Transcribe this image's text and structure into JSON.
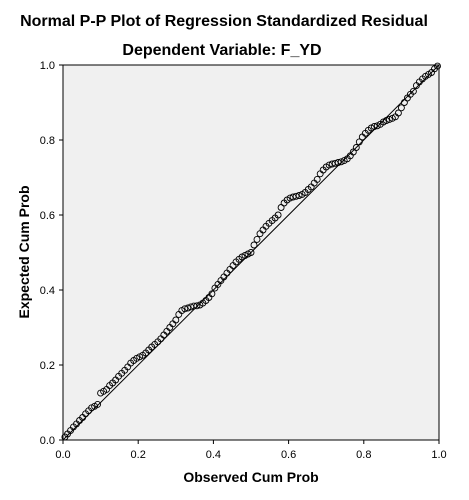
{
  "chart_data": {
    "type": "scatter",
    "title": "Normal P-P Plot of Regression Standardized Residual",
    "subtitle": "Dependent Variable: F_YD",
    "xlabel": "Observed Cum Prob",
    "ylabel": "Expected Cum Prob",
    "xlim": [
      0,
      1
    ],
    "ylim": [
      0,
      1
    ],
    "xticks": [
      "0.0",
      "0.2",
      "0.4",
      "0.6",
      "0.8",
      "1.0"
    ],
    "yticks": [
      "0.0",
      "0.2",
      "0.4",
      "0.6",
      "0.8",
      "1.0"
    ],
    "grid": false,
    "reference_line": [
      [
        0,
        0
      ],
      [
        1,
        1
      ]
    ],
    "colors": {
      "plot_background": "#f0f0f0",
      "points": "#000000",
      "line": "#000000"
    },
    "points": [
      [
        0.005,
        0.008
      ],
      [
        0.012,
        0.016
      ],
      [
        0.02,
        0.025
      ],
      [
        0.028,
        0.035
      ],
      [
        0.036,
        0.043
      ],
      [
        0.044,
        0.052
      ],
      [
        0.052,
        0.06
      ],
      [
        0.06,
        0.07
      ],
      [
        0.068,
        0.078
      ],
      [
        0.076,
        0.086
      ],
      [
        0.084,
        0.09
      ],
      [
        0.092,
        0.095
      ],
      [
        0.1,
        0.125
      ],
      [
        0.108,
        0.13
      ],
      [
        0.116,
        0.135
      ],
      [
        0.124,
        0.145
      ],
      [
        0.132,
        0.152
      ],
      [
        0.14,
        0.16
      ],
      [
        0.148,
        0.17
      ],
      [
        0.156,
        0.178
      ],
      [
        0.164,
        0.186
      ],
      [
        0.172,
        0.195
      ],
      [
        0.18,
        0.205
      ],
      [
        0.188,
        0.212
      ],
      [
        0.196,
        0.218
      ],
      [
        0.204,
        0.222
      ],
      [
        0.212,
        0.226
      ],
      [
        0.22,
        0.232
      ],
      [
        0.228,
        0.24
      ],
      [
        0.236,
        0.248
      ],
      [
        0.244,
        0.255
      ],
      [
        0.252,
        0.262
      ],
      [
        0.26,
        0.27
      ],
      [
        0.268,
        0.28
      ],
      [
        0.276,
        0.29
      ],
      [
        0.284,
        0.3
      ],
      [
        0.292,
        0.31
      ],
      [
        0.3,
        0.32
      ],
      [
        0.308,
        0.335
      ],
      [
        0.316,
        0.345
      ],
      [
        0.324,
        0.35
      ],
      [
        0.332,
        0.352
      ],
      [
        0.34,
        0.355
      ],
      [
        0.348,
        0.357
      ],
      [
        0.356,
        0.358
      ],
      [
        0.364,
        0.36
      ],
      [
        0.372,
        0.365
      ],
      [
        0.38,
        0.372
      ],
      [
        0.388,
        0.38
      ],
      [
        0.396,
        0.39
      ],
      [
        0.404,
        0.405
      ],
      [
        0.412,
        0.415
      ],
      [
        0.42,
        0.425
      ],
      [
        0.428,
        0.435
      ],
      [
        0.436,
        0.445
      ],
      [
        0.444,
        0.455
      ],
      [
        0.452,
        0.465
      ],
      [
        0.46,
        0.475
      ],
      [
        0.468,
        0.482
      ],
      [
        0.476,
        0.488
      ],
      [
        0.484,
        0.492
      ],
      [
        0.492,
        0.496
      ],
      [
        0.5,
        0.5
      ],
      [
        0.508,
        0.52
      ],
      [
        0.516,
        0.535
      ],
      [
        0.524,
        0.55
      ],
      [
        0.532,
        0.56
      ],
      [
        0.54,
        0.57
      ],
      [
        0.548,
        0.578
      ],
      [
        0.556,
        0.585
      ],
      [
        0.564,
        0.592
      ],
      [
        0.572,
        0.6
      ],
      [
        0.58,
        0.62
      ],
      [
        0.588,
        0.632
      ],
      [
        0.596,
        0.64
      ],
      [
        0.604,
        0.645
      ],
      [
        0.612,
        0.648
      ],
      [
        0.62,
        0.65
      ],
      [
        0.628,
        0.652
      ],
      [
        0.636,
        0.655
      ],
      [
        0.644,
        0.66
      ],
      [
        0.652,
        0.668
      ],
      [
        0.66,
        0.675
      ],
      [
        0.668,
        0.685
      ],
      [
        0.676,
        0.695
      ],
      [
        0.684,
        0.71
      ],
      [
        0.692,
        0.72
      ],
      [
        0.7,
        0.728
      ],
      [
        0.708,
        0.733
      ],
      [
        0.716,
        0.736
      ],
      [
        0.724,
        0.738
      ],
      [
        0.732,
        0.74
      ],
      [
        0.74,
        0.742
      ],
      [
        0.748,
        0.745
      ],
      [
        0.756,
        0.75
      ],
      [
        0.764,
        0.758
      ],
      [
        0.772,
        0.768
      ],
      [
        0.78,
        0.78
      ],
      [
        0.788,
        0.795
      ],
      [
        0.796,
        0.808
      ],
      [
        0.804,
        0.818
      ],
      [
        0.812,
        0.826
      ],
      [
        0.82,
        0.832
      ],
      [
        0.828,
        0.836
      ],
      [
        0.836,
        0.838
      ],
      [
        0.844,
        0.842
      ],
      [
        0.852,
        0.848
      ],
      [
        0.86,
        0.852
      ],
      [
        0.868,
        0.855
      ],
      [
        0.876,
        0.858
      ],
      [
        0.884,
        0.862
      ],
      [
        0.892,
        0.872
      ],
      [
        0.9,
        0.886
      ],
      [
        0.908,
        0.9
      ],
      [
        0.916,
        0.912
      ],
      [
        0.924,
        0.922
      ],
      [
        0.932,
        0.93
      ],
      [
        0.94,
        0.945
      ],
      [
        0.948,
        0.955
      ],
      [
        0.956,
        0.963
      ],
      [
        0.964,
        0.97
      ],
      [
        0.972,
        0.975
      ],
      [
        0.98,
        0.98
      ],
      [
        0.988,
        0.99
      ],
      [
        0.996,
        0.997
      ]
    ]
  }
}
